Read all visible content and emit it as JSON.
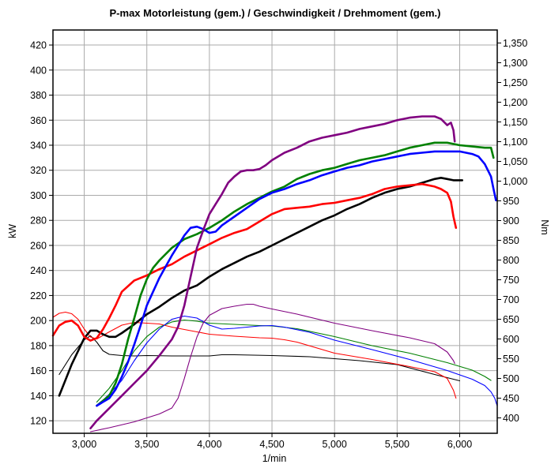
{
  "chart_data": {
    "type": "line",
    "title": "P-max Motorleistung (gem.) / Geschwindigkeit / Drehmoment (gem.)",
    "xlabel": "1/min",
    "ylabel_left": "kW",
    "ylabel_right": "Nm",
    "xlim": [
      2750,
      6300
    ],
    "ylim_left": [
      110,
      432
    ],
    "ylim_right": [
      361,
      1383
    ],
    "grid": true,
    "x_ticks": [
      3000,
      3500,
      4000,
      4500,
      5000,
      5500,
      6000
    ],
    "x_tick_labels": [
      "3,000",
      "3,500",
      "4,000",
      "4,500",
      "5,000",
      "5,500",
      "6,000"
    ],
    "y_left_ticks": [
      120,
      140,
      160,
      180,
      200,
      220,
      240,
      260,
      280,
      300,
      320,
      340,
      360,
      380,
      400,
      420
    ],
    "y_left_tick_labels": [
      "120",
      "140",
      "160",
      "180",
      "200",
      "220",
      "240",
      "260",
      "280",
      "300",
      "320",
      "340",
      "360",
      "380",
      "400",
      "420"
    ],
    "y_right_ticks": [
      400,
      450,
      500,
      550,
      600,
      650,
      700,
      750,
      800,
      850,
      900,
      950,
      1000,
      1050,
      1100,
      1150,
      1200,
      1250,
      1300,
      1350
    ],
    "y_right_tick_labels": [
      "400",
      "450",
      "500",
      "550",
      "600",
      "650",
      "700",
      "750",
      "800",
      "850",
      "900",
      "950",
      "1,000",
      "1,050",
      "1,100",
      "1,150",
      "1,200",
      "1,250",
      "1,300",
      "1,350"
    ],
    "series": [
      {
        "color": "#000000",
        "kind": "power",
        "axis": "left",
        "x": [
          2800,
          2900,
          3000,
          3050,
          3100,
          3150,
          3200,
          3250,
          3300,
          3400,
          3500,
          3600,
          3700,
          3800,
          3900,
          4000,
          4100,
          4200,
          4300,
          4400,
          4500,
          4600,
          4700,
          4800,
          4900,
          5000,
          5100,
          5200,
          5300,
          5400,
          5500,
          5600,
          5700,
          5800,
          5850,
          5900,
          5950,
          6000,
          6020
        ],
        "y": [
          140,
          165,
          186,
          192,
          192,
          189,
          187,
          187,
          190,
          197,
          205,
          211,
          218,
          224,
          228,
          235,
          241,
          246,
          251,
          255,
          260,
          265,
          270,
          275,
          280,
          284,
          289,
          293,
          298,
          302,
          305,
          307,
          310,
          313,
          314,
          313,
          312,
          312,
          312
        ]
      },
      {
        "color": "#000000",
        "kind": "torque",
        "axis": "right",
        "x": [
          2800,
          2900,
          3000,
          3050,
          3100,
          3150,
          3200,
          3300,
          3400,
          3500,
          3700,
          4000,
          4100,
          4200,
          4500,
          4800,
          5000,
          5200,
          5500,
          5800,
          6000
        ],
        "y": [
          510,
          560,
          598,
          608,
          592,
          570,
          561,
          558,
          557,
          558,
          557,
          557,
          560,
          560,
          558,
          555,
          550,
          545,
          535,
          510,
          494
        ]
      },
      {
        "color": "#ff0000",
        "kind": "power",
        "axis": "left",
        "x": [
          2750,
          2800,
          2850,
          2900,
          2950,
          3000,
          3050,
          3100,
          3150,
          3200,
          3250,
          3300,
          3400,
          3500,
          3600,
          3700,
          3800,
          3900,
          4000,
          4100,
          4200,
          4300,
          4400,
          4500,
          4600,
          4700,
          4800,
          4900,
          5000,
          5100,
          5200,
          5300,
          5400,
          5500,
          5600,
          5700,
          5800,
          5850,
          5900,
          5930,
          5950,
          5970
        ],
        "y": [
          188,
          196,
          199,
          200,
          196,
          187,
          184,
          186,
          193,
          202,
          212,
          223,
          232,
          236,
          241,
          245,
          251,
          256,
          261,
          266,
          270,
          273,
          279,
          285,
          289,
          290,
          291,
          293,
          294,
          296,
          298,
          301,
          305,
          307,
          308,
          309,
          307,
          305,
          302,
          295,
          283,
          274
        ]
      },
      {
        "color": "#ff0000",
        "kind": "torque",
        "axis": "right",
        "x": [
          2750,
          2800,
          2850,
          2900,
          2950,
          3000,
          3050,
          3100,
          3200,
          3300,
          3400,
          3500,
          3600,
          3700,
          3800,
          3900,
          4000,
          4200,
          4400,
          4500,
          4600,
          4700,
          5000,
          5300,
          5600,
          5800,
          5900,
          5950,
          5970
        ],
        "y": [
          655,
          665,
          668,
          664,
          650,
          625,
          605,
          600,
          618,
          635,
          642,
          640,
          638,
          630,
          624,
          618,
          612,
          607,
          603,
          602,
          598,
          592,
          564,
          548,
          530,
          517,
          500,
          470,
          450
        ]
      },
      {
        "color": "#008000",
        "kind": "power",
        "axis": "left",
        "x": [
          3100,
          3200,
          3250,
          3300,
          3350,
          3400,
          3450,
          3500,
          3550,
          3600,
          3700,
          3800,
          3900,
          4000,
          4100,
          4200,
          4300,
          4400,
          4500,
          4600,
          4700,
          4800,
          4900,
          5000,
          5100,
          5200,
          5300,
          5400,
          5500,
          5600,
          5700,
          5800,
          5900,
          6000,
          6100,
          6200,
          6250,
          6270
        ],
        "y": [
          132,
          140,
          150,
          165,
          185,
          202,
          220,
          233,
          242,
          248,
          258,
          265,
          269,
          274,
          280,
          287,
          293,
          298,
          303,
          307,
          313,
          317,
          320,
          322,
          325,
          328,
          330,
          332,
          335,
          338,
          340,
          342,
          342,
          340,
          339,
          338,
          338,
          330
        ]
      },
      {
        "color": "#008000",
        "kind": "torque",
        "axis": "right",
        "x": [
          3100,
          3200,
          3300,
          3400,
          3500,
          3600,
          3700,
          3800,
          3900,
          4000,
          4200,
          4400,
          4500,
          4700,
          5000,
          5300,
          5600,
          5900,
          6100,
          6200,
          6250
        ],
        "y": [
          440,
          475,
          520,
          570,
          606,
          630,
          643,
          648,
          645,
          640,
          637,
          634,
          633,
          626,
          606,
          583,
          564,
          540,
          521,
          505,
          495
        ]
      },
      {
        "color": "#0000ff",
        "kind": "power",
        "axis": "left",
        "x": [
          3100,
          3150,
          3200,
          3250,
          3300,
          3350,
          3400,
          3450,
          3500,
          3550,
          3600,
          3650,
          3700,
          3750,
          3800,
          3850,
          3900,
          3950,
          4000,
          4050,
          4100,
          4200,
          4300,
          4400,
          4500,
          4600,
          4700,
          4800,
          4900,
          5000,
          5100,
          5200,
          5300,
          5400,
          5500,
          5600,
          5700,
          5800,
          5900,
          6000,
          6100,
          6150,
          6200,
          6250,
          6270,
          6290
        ],
        "y": [
          132,
          135,
          138,
          145,
          155,
          167,
          181,
          196,
          212,
          223,
          234,
          243,
          252,
          260,
          268,
          274,
          275,
          273,
          270,
          271,
          276,
          283,
          290,
          297,
          302,
          305,
          309,
          312,
          316,
          319,
          322,
          324,
          327,
          329,
          331,
          333,
          334,
          335,
          335,
          335,
          333,
          331,
          325,
          315,
          305,
          296
        ]
      },
      {
        "color": "#0000ff",
        "kind": "torque",
        "axis": "right",
        "x": [
          3100,
          3200,
          3300,
          3400,
          3500,
          3600,
          3700,
          3800,
          3900,
          4000,
          4100,
          4200,
          4300,
          4400,
          4500,
          4600,
          4800,
          5000,
          5300,
          5600,
          5900,
          6100,
          6200,
          6250,
          6280,
          6300
        ],
        "y": [
          430,
          460,
          495,
          545,
          590,
          625,
          650,
          658,
          653,
          635,
          625,
          627,
          630,
          633,
          634,
          630,
          617,
          597,
          573,
          548,
          520,
          498,
          482,
          466,
          450,
          430
        ]
      },
      {
        "color": "#800080",
        "kind": "power",
        "axis": "left",
        "x": [
          3050,
          3100,
          3200,
          3300,
          3400,
          3500,
          3600,
          3700,
          3750,
          3800,
          3850,
          3900,
          3950,
          4000,
          4050,
          4100,
          4150,
          4200,
          4250,
          4300,
          4350,
          4400,
          4450,
          4500,
          4600,
          4700,
          4800,
          4900,
          5000,
          5100,
          5200,
          5300,
          5400,
          5500,
          5600,
          5700,
          5800,
          5850,
          5900,
          5930,
          5950,
          5960
        ],
        "y": [
          114,
          120,
          130,
          140,
          150,
          160,
          172,
          185,
          195,
          212,
          235,
          258,
          272,
          285,
          293,
          301,
          310,
          315,
          319,
          320,
          320,
          321,
          324,
          328,
          334,
          338,
          343,
          346,
          348,
          350,
          353,
          355,
          357,
          360,
          362,
          363,
          363,
          361,
          356,
          358,
          352,
          343
        ]
      },
      {
        "color": "#800080",
        "kind": "torque",
        "axis": "right",
        "x": [
          3050,
          3200,
          3400,
          3600,
          3700,
          3750,
          3800,
          3850,
          3900,
          3950,
          4000,
          4100,
          4200,
          4300,
          4350,
          4400,
          4500,
          4700,
          5000,
          5300,
          5600,
          5800,
          5900,
          5950,
          5960
        ],
        "y": [
          365,
          375,
          390,
          410,
          425,
          450,
          500,
          555,
          605,
          640,
          660,
          677,
          683,
          688,
          688,
          683,
          676,
          663,
          640,
          621,
          603,
          588,
          567,
          545,
          538
        ]
      }
    ]
  }
}
